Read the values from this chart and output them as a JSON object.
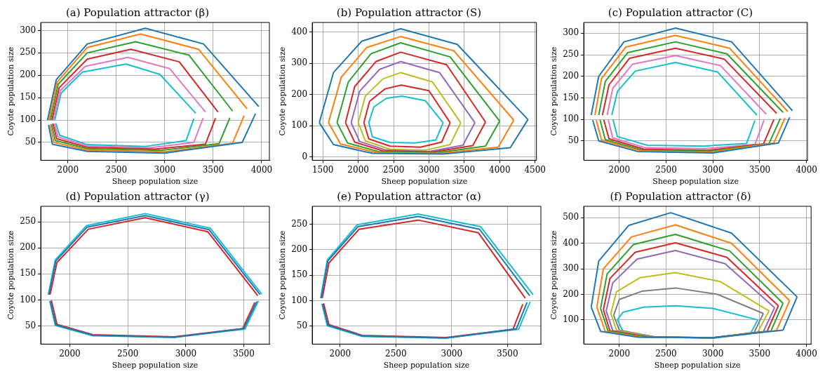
{
  "chart_data": [
    {
      "type": "line",
      "title": "(a) Population attractor (β)",
      "xlabel": "Sheep population size",
      "ylabel": "Coyote population size",
      "xlim": [
        1720,
        4080
      ],
      "ylim": [
        10,
        318
      ],
      "xticks": [
        2000,
        2500,
        3000,
        3500,
        4000
      ],
      "yticks": [
        50,
        100,
        150,
        200,
        250,
        300
      ],
      "grid": true,
      "legend": false,
      "marker": "none",
      "series": [
        {
          "color": "#1f77b4",
          "x": [
            1790,
            1880,
            2200,
            2800,
            3400,
            3970
          ],
          "values": [
            100,
            190,
            270,
            305,
            270,
            130
          ]
        },
        {
          "color": "#1f77b4",
          "x": [
            1800,
            1840,
            2200,
            3000,
            3800,
            3936
          ],
          "values": [
            89,
            46,
            30,
            26,
            50,
            114
          ]
        },
        {
          "color": "#ff7f0e",
          "x": [
            1805,
            1890,
            2200,
            2750,
            3350,
            3850
          ],
          "values": [
            100,
            185,
            262,
            292,
            258,
            125
          ]
        },
        {
          "color": "#ff7f0e",
          "x": [
            1815,
            1855,
            2200,
            3000,
            3700,
            3820
          ],
          "values": [
            90,
            50,
            33,
            29,
            48,
            110
          ]
        },
        {
          "color": "#2ca02c",
          "x": [
            1820,
            1900,
            2200,
            2700,
            3250,
            3700
          ],
          "values": [
            100,
            180,
            250,
            275,
            245,
            120
          ]
        },
        {
          "color": "#2ca02c",
          "x": [
            1830,
            1870,
            2200,
            2950,
            3560,
            3672
          ],
          "values": [
            91,
            54,
            36,
            32,
            47,
            105
          ]
        },
        {
          "color": "#d62728",
          "x": [
            1835,
            1910,
            2200,
            2650,
            3150,
            3550
          ],
          "values": [
            100,
            172,
            236,
            258,
            230,
            118
          ]
        },
        {
          "color": "#d62728",
          "x": [
            1845,
            1885,
            2200,
            2900,
            3420,
            3524
          ],
          "values": [
            92,
            58,
            39,
            35,
            46,
            104
          ]
        },
        {
          "color": "#e377c2",
          "x": [
            1850,
            1920,
            2180,
            2620,
            3050,
            3420
          ],
          "values": [
            100,
            165,
            220,
            240,
            215,
            118
          ]
        },
        {
          "color": "#e377c2",
          "x": [
            1860,
            1900,
            2200,
            2850,
            3300,
            3396
          ],
          "values": [
            92,
            62,
            42,
            38,
            50,
            104
          ]
        },
        {
          "color": "#17becf",
          "x": [
            1865,
            1930,
            2150,
            2600,
            2950,
            3320
          ],
          "values": [
            100,
            160,
            207,
            225,
            202,
            115
          ]
        },
        {
          "color": "#17becf",
          "x": [
            1875,
            1915,
            2200,
            2800,
            3220,
            3300
          ],
          "values": [
            93,
            66,
            45,
            41,
            54,
            103
          ]
        }
      ]
    },
    {
      "type": "line",
      "title": "(b) Population attractor (S)",
      "xlabel": "Sheep population size",
      "ylabel": "Coyote population size",
      "xlim": [
        1350,
        4520
      ],
      "ylim": [
        -10,
        430
      ],
      "xticks": [
        1500,
        2000,
        2500,
        3000,
        3500,
        4000,
        4500
      ],
      "yticks": [
        0,
        100,
        200,
        300,
        400
      ],
      "grid": true,
      "legend": false,
      "marker": "none",
      "series": [
        {
          "color": "#1f77b4",
          "x": [
            1450,
            1650,
            2050,
            2600,
            3400,
            4400
          ],
          "values": [
            110,
            270,
            370,
            410,
            360,
            120
          ]
        },
        {
          "color": "#1f77b4",
          "x": [
            1450,
            1650,
            2200,
            3200,
            4150,
            4400
          ],
          "values": [
            110,
            40,
            12,
            10,
            30,
            120
          ]
        },
        {
          "color": "#ff7f0e",
          "x": [
            1580,
            1760,
            2120,
            2600,
            3350,
            4200
          ],
          "values": [
            110,
            255,
            350,
            385,
            340,
            118
          ]
        },
        {
          "color": "#ff7f0e",
          "x": [
            1580,
            1750,
            2250,
            3150,
            3980,
            4200
          ],
          "values": [
            110,
            42,
            15,
            12,
            32,
            118
          ]
        },
        {
          "color": "#2ca02c",
          "x": [
            1700,
            1860,
            2180,
            2600,
            3300,
            4000
          ],
          "values": [
            110,
            240,
            330,
            365,
            320,
            115
          ]
        },
        {
          "color": "#2ca02c",
          "x": [
            1700,
            1850,
            2300,
            3100,
            3800,
            4000
          ],
          "values": [
            110,
            45,
            17,
            14,
            35,
            115
          ]
        },
        {
          "color": "#d62728",
          "x": [
            1820,
            1950,
            2250,
            2600,
            3250,
            3800
          ],
          "values": [
            110,
            225,
            305,
            335,
            295,
            112
          ]
        },
        {
          "color": "#d62728",
          "x": [
            1820,
            1950,
            2350,
            3050,
            3620,
            3800
          ],
          "values": [
            110,
            48,
            20,
            16,
            37,
            112
          ]
        },
        {
          "color": "#9467bd",
          "x": [
            1900,
            2020,
            2300,
            2600,
            3150,
            3650
          ],
          "values": [
            110,
            210,
            280,
            305,
            270,
            110
          ]
        },
        {
          "color": "#9467bd",
          "x": [
            1900,
            2020,
            2400,
            3000,
            3480,
            3650
          ],
          "values": [
            110,
            50,
            22,
            18,
            38,
            110
          ]
        },
        {
          "color": "#bcbd22",
          "x": [
            2000,
            2100,
            2350,
            2600,
            3050,
            3450
          ],
          "values": [
            110,
            195,
            250,
            270,
            240,
            110
          ]
        },
        {
          "color": "#bcbd22",
          "x": [
            2000,
            2100,
            2450,
            2950,
            3300,
            3450
          ],
          "values": [
            110,
            52,
            25,
            22,
            40,
            110
          ]
        },
        {
          "color": "#d62728",
          "x": [
            2080,
            2160,
            2380,
            2610,
            3000,
            3300
          ],
          "values": [
            110,
            178,
            218,
            230,
            212,
            110
          ]
        },
        {
          "color": "#d62728",
          "x": [
            2080,
            2150,
            2450,
            2880,
            3180,
            3300
          ],
          "values": [
            110,
            58,
            35,
            32,
            48,
            110
          ]
        },
        {
          "color": "#17becf",
          "x": [
            2150,
            2220,
            2400,
            2620,
            2950,
            3200
          ],
          "values": [
            110,
            160,
            188,
            195,
            180,
            110
          ]
        },
        {
          "color": "#17becf",
          "x": [
            2150,
            2200,
            2450,
            2800,
            3100,
            3200
          ],
          "values": [
            110,
            65,
            47,
            45,
            55,
            110
          ]
        }
      ]
    },
    {
      "type": "line",
      "title": "(c) Population attractor (C)",
      "xlabel": "Sheep population size",
      "ylabel": "Coyote population size",
      "xlim": [
        1620,
        4010
      ],
      "ylim": [
        5,
        325
      ],
      "xticks": [
        2000,
        2500,
        3000,
        3500,
        4000
      ],
      "yticks": [
        50,
        100,
        150,
        200,
        250,
        300
      ],
      "grid": true,
      "legend": false,
      "marker": "none",
      "series": [
        {
          "color": "#1f77b4",
          "x": [
            1700,
            1780,
            2050,
            2600,
            3200,
            3850
          ],
          "values": [
            110,
            200,
            280,
            312,
            280,
            120
          ]
        },
        {
          "color": "#1f77b4",
          "x": [
            1716,
            1780,
            2200,
            3000,
            3700,
            3820
          ],
          "values": [
            98,
            50,
            25,
            22,
            45,
            105
          ]
        },
        {
          "color": "#ff7f0e",
          "x": [
            1740,
            1810,
            2070,
            2600,
            3180,
            3800
          ],
          "values": [
            110,
            195,
            268,
            295,
            265,
            118
          ]
        },
        {
          "color": "#ff7f0e",
          "x": [
            1754,
            1810,
            2220,
            2980,
            3650,
            3770
          ],
          "values": [
            98,
            52,
            27,
            24,
            45,
            103
          ]
        },
        {
          "color": "#2ca02c",
          "x": [
            1780,
            1850,
            2090,
            2600,
            3150,
            3750
          ],
          "values": [
            110,
            188,
            255,
            280,
            252,
            116
          ]
        },
        {
          "color": "#2ca02c",
          "x": [
            1794,
            1850,
            2240,
            2960,
            3600,
            3720
          ],
          "values": [
            99,
            53,
            29,
            26,
            44,
            102
          ]
        },
        {
          "color": "#d62728",
          "x": [
            1820,
            1890,
            2110,
            2600,
            3120,
            3680
          ],
          "values": [
            110,
            180,
            242,
            265,
            240,
            114
          ]
        },
        {
          "color": "#d62728",
          "x": [
            1834,
            1890,
            2260,
            2940,
            3540,
            3652
          ],
          "values": [
            99,
            55,
            31,
            28,
            43,
            100
          ]
        },
        {
          "color": "#e377c2",
          "x": [
            1870,
            1930,
            2140,
            2600,
            3080,
            3570
          ],
          "values": [
            110,
            172,
            228,
            248,
            225,
            112
          ]
        },
        {
          "color": "#e377c2",
          "x": [
            1882,
            1930,
            2280,
            2920,
            3450,
            3546
          ],
          "values": [
            99,
            57,
            34,
            32,
            42,
            98
          ]
        },
        {
          "color": "#17becf",
          "x": [
            1920,
            1980,
            2170,
            2600,
            3050,
            3470
          ],
          "values": [
            110,
            165,
            212,
            232,
            210,
            110
          ]
        },
        {
          "color": "#17becf",
          "x": [
            1932,
            1980,
            2300,
            2900,
            3360,
            3448
          ],
          "values": [
            100,
            60,
            40,
            38,
            44,
            97
          ]
        }
      ]
    },
    {
      "type": "line",
      "title": "(d) Population attractor (γ)",
      "xlabel": "Sheep population size",
      "ylabel": "Coyote population size",
      "xlim": [
        1750,
        3720
      ],
      "ylim": [
        15,
        280
      ],
      "xticks": [
        2000,
        2500,
        3000,
        3500
      ],
      "yticks": [
        50,
        100,
        150,
        200,
        250
      ],
      "grid": true,
      "legend": false,
      "marker": "none",
      "series": [
        {
          "color": "#1f77b4",
          "x": [
            1820,
            1880,
            2150,
            2650,
            3200,
            3640
          ],
          "values": [
            110,
            175,
            240,
            262,
            235,
            110
          ]
        },
        {
          "color": "#1f77b4",
          "x": [
            1832,
            1880,
            2200,
            2900,
            3500,
            3612
          ],
          "values": [
            98,
            52,
            32,
            28,
            45,
            97
          ]
        },
        {
          "color": "#d62728",
          "x": [
            1830,
            1890,
            2160,
            2650,
            3190,
            3620
          ],
          "values": [
            110,
            172,
            236,
            258,
            231,
            108
          ]
        },
        {
          "color": "#d62728",
          "x": [
            1842,
            1890,
            2200,
            2900,
            3490,
            3594
          ],
          "values": [
            99,
            53,
            33,
            29,
            45,
            95
          ]
        },
        {
          "color": "#17becf",
          "x": [
            1815,
            1875,
            2145,
            2650,
            3210,
            3655
          ],
          "values": [
            110,
            177,
            243,
            266,
            238,
            111
          ]
        },
        {
          "color": "#17becf",
          "x": [
            1827,
            1875,
            2200,
            2900,
            3510,
            3626
          ],
          "values": [
            98,
            51,
            31,
            28,
            44,
            98
          ]
        }
      ]
    },
    {
      "type": "line",
      "title": "(e) Population attractor (α)",
      "xlabel": "Sheep population size",
      "ylabel": "Coyote population size",
      "xlim": [
        1750,
        3800
      ],
      "ylim": [
        15,
        285
      ],
      "xticks": [
        2000,
        2500,
        3000,
        3500
      ],
      "yticks": [
        50,
        100,
        150,
        200,
        250
      ],
      "grid": true,
      "legend": false,
      "marker": "none",
      "series": [
        {
          "color": "#1f77b4",
          "x": [
            1830,
            1890,
            2160,
            2700,
            3250,
            3700
          ],
          "values": [
            105,
            178,
            245,
            265,
            240,
            110
          ]
        },
        {
          "color": "#1f77b4",
          "x": [
            1842,
            1890,
            2200,
            2950,
            3580,
            3676
          ],
          "values": [
            94,
            52,
            31,
            27,
            45,
            97
          ]
        },
        {
          "color": "#d62728",
          "x": [
            1840,
            1900,
            2170,
            2700,
            3240,
            3660
          ],
          "values": [
            105,
            174,
            240,
            258,
            233,
            105
          ]
        },
        {
          "color": "#d62728",
          "x": [
            1852,
            1900,
            2200,
            2950,
            3550,
            3638
          ],
          "values": [
            95,
            53,
            32,
            28,
            44,
            93
          ]
        },
        {
          "color": "#17becf",
          "x": [
            1825,
            1885,
            2155,
            2700,
            3260,
            3730
          ],
          "values": [
            105,
            180,
            249,
            270,
            245,
            112
          ]
        },
        {
          "color": "#17becf",
          "x": [
            1837,
            1885,
            2200,
            2950,
            3600,
            3704
          ],
          "values": [
            94,
            51,
            30,
            27,
            44,
            98
          ]
        }
      ]
    },
    {
      "type": "line",
      "title": "(f) Population attractor (δ)",
      "xlabel": "Sheep population size",
      "ylabel": "Coyote population size",
      "xlim": [
        1620,
        4050
      ],
      "ylim": [
        5,
        545
      ],
      "xticks": [
        2000,
        2500,
        3000,
        3500,
        4000
      ],
      "yticks": [
        100,
        200,
        300,
        400,
        500
      ],
      "grid": true,
      "legend": false,
      "marker": "none",
      "series": [
        {
          "color": "#1f77b4",
          "x": [
            1700,
            1780,
            2100,
            2550,
            3200,
            3900
          ],
          "values": [
            150,
            330,
            470,
            520,
            440,
            190
          ]
        },
        {
          "color": "#1f77b4",
          "x": [
            1700,
            1800,
            2200,
            3000,
            3750,
            3900
          ],
          "values": [
            150,
            55,
            32,
            30,
            60,
            190
          ]
        },
        {
          "color": "#ff7f0e",
          "x": [
            1760,
            1830,
            2130,
            2600,
            3200,
            3820
          ],
          "values": [
            150,
            300,
            425,
            472,
            400,
            175
          ]
        },
        {
          "color": "#ff7f0e",
          "x": [
            1760,
            1850,
            2250,
            3000,
            3680,
            3820
          ],
          "values": [
            150,
            55,
            32,
            30,
            58,
            175
          ]
        },
        {
          "color": "#2ca02c",
          "x": [
            1800,
            1870,
            2150,
            2600,
            3180,
            3750
          ],
          "values": [
            145,
            280,
            395,
            435,
            370,
            165
          ]
        },
        {
          "color": "#2ca02c",
          "x": [
            1800,
            1880,
            2280,
            3000,
            3620,
            3750
          ],
          "values": [
            145,
            56,
            33,
            30,
            56,
            165
          ]
        },
        {
          "color": "#d62728",
          "x": [
            1830,
            1900,
            2170,
            2600,
            3150,
            3700
          ],
          "values": [
            140,
            262,
            365,
            402,
            345,
            155
          ]
        },
        {
          "color": "#d62728",
          "x": [
            1830,
            1900,
            2300,
            3000,
            3580,
            3700
          ],
          "values": [
            140,
            57,
            33,
            30,
            55,
            155
          ]
        },
        {
          "color": "#9467bd",
          "x": [
            1860,
            1930,
            2190,
            2600,
            3130,
            3660
          ],
          "values": [
            135,
            245,
            338,
            372,
            320,
            148
          ]
        },
        {
          "color": "#9467bd",
          "x": [
            1860,
            1930,
            2320,
            3000,
            3540,
            3660
          ],
          "values": [
            135,
            58,
            33,
            30,
            54,
            148
          ]
        },
        {
          "color": "#bcbd22",
          "x": [
            1910,
            1970,
            2220,
            2600,
            3080,
            3600
          ],
          "values": [
            125,
            210,
            265,
            285,
            250,
            135
          ]
        },
        {
          "color": "#bcbd22",
          "x": [
            1910,
            1970,
            2350,
            3000,
            3480,
            3600
          ],
          "values": [
            125,
            59,
            33,
            30,
            52,
            135
          ]
        },
        {
          "color": "#7f7f7f",
          "x": [
            1940,
            2000,
            2240,
            2600,
            3050,
            3540
          ],
          "values": [
            118,
            180,
            212,
            225,
            200,
            125
          ]
        },
        {
          "color": "#7f7f7f",
          "x": [
            1940,
            2000,
            2380,
            3000,
            3440,
            3540
          ],
          "values": [
            118,
            60,
            33,
            29,
            50,
            125
          ]
        },
        {
          "color": "#17becf",
          "x": [
            1980,
            2040,
            2260,
            2600,
            3000,
            3480
          ],
          "values": [
            100,
            130,
            150,
            155,
            145,
            100
          ]
        },
        {
          "color": "#17becf",
          "x": [
            1980,
            2040,
            2400,
            3000,
            3400,
            3480
          ],
          "values": [
            100,
            55,
            32,
            28,
            45,
            100
          ]
        }
      ]
    }
  ]
}
